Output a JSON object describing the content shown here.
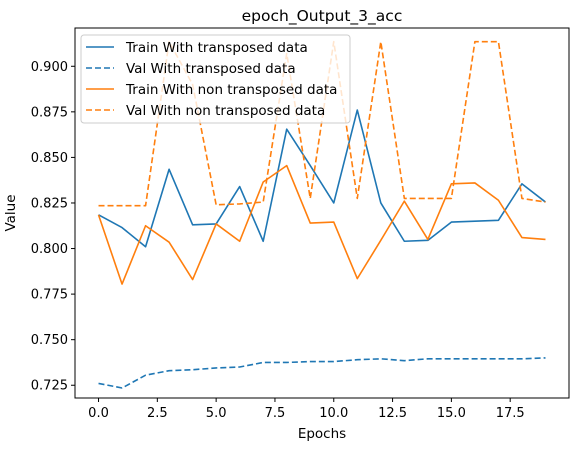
{
  "chart_data": {
    "type": "line",
    "title": "epoch_Output_3_acc",
    "xlabel": "Epochs",
    "ylabel": "Value",
    "x": [
      0,
      1,
      2,
      3,
      4,
      5,
      6,
      7,
      8,
      9,
      10,
      11,
      12,
      13,
      14,
      15,
      16,
      17,
      18,
      19
    ],
    "xlim": [
      -1,
      20
    ],
    "ylim": [
      0.718,
      0.921
    ],
    "xticks": [
      0.0,
      2.5,
      5.0,
      7.5,
      10.0,
      12.5,
      15.0,
      17.5
    ],
    "xtick_labels": [
      "0.0",
      "2.5",
      "5.0",
      "7.5",
      "10.0",
      "12.5",
      "15.0",
      "17.5"
    ],
    "yticks": [
      0.725,
      0.75,
      0.775,
      0.8,
      0.825,
      0.85,
      0.875,
      0.9
    ],
    "ytick_labels": [
      "0.725",
      "0.750",
      "0.775",
      "0.800",
      "0.825",
      "0.850",
      "0.875",
      "0.900"
    ],
    "grid": false,
    "legend_position": "upper-left",
    "series": [
      {
        "name": "Train With transposed data",
        "color": "#1f77b4",
        "style": "solid",
        "values": [
          0.8185,
          0.8115,
          0.801,
          0.8435,
          0.813,
          0.8135,
          0.834,
          0.804,
          0.8655,
          0.8455,
          0.825,
          0.876,
          0.825,
          0.804,
          0.8045,
          0.8145,
          0.815,
          0.8155,
          0.8355,
          0.8255
        ]
      },
      {
        "name": "Val With transposed data",
        "color": "#1f77b4",
        "style": "dashed",
        "values": [
          0.726,
          0.7235,
          0.7305,
          0.733,
          0.7335,
          0.7345,
          0.735,
          0.7375,
          0.7375,
          0.738,
          0.738,
          0.739,
          0.7395,
          0.7385,
          0.7395,
          0.7395,
          0.7395,
          0.7395,
          0.7395,
          0.74
        ]
      },
      {
        "name": "Train With non transposed data",
        "color": "#ff7f0e",
        "style": "solid",
        "values": [
          0.8185,
          0.7805,
          0.8125,
          0.8035,
          0.783,
          0.8135,
          0.804,
          0.8365,
          0.8455,
          0.814,
          0.8145,
          0.7835,
          0.8045,
          0.826,
          0.805,
          0.8355,
          0.836,
          0.8265,
          0.806,
          0.805
        ]
      },
      {
        "name": "Val With non transposed data",
        "color": "#ff7f0e",
        "style": "dashed",
        "values": [
          0.8235,
          0.8235,
          0.8235,
          0.9135,
          0.89,
          0.824,
          0.8245,
          0.8255,
          0.907,
          0.8275,
          0.9135,
          0.8275,
          0.9135,
          0.8275,
          0.8275,
          0.8275,
          0.9135,
          0.9135,
          0.8275,
          0.8255
        ]
      }
    ]
  }
}
